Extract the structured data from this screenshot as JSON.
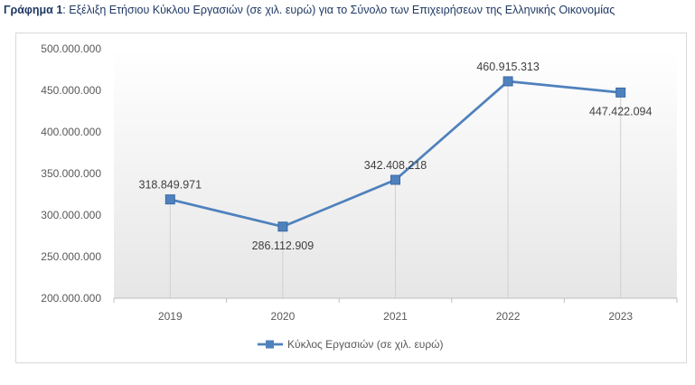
{
  "caption": {
    "prefix": "Γράφημα 1",
    "text": ": Εξέλιξη Ετήσιου Κύκλου Εργασιών (σε χιλ. ευρώ) για το Σύνολο των Επιχειρήσεων της Ελληνικής Οικονομίας"
  },
  "chart_data": {
    "type": "line",
    "categories": [
      "2019",
      "2020",
      "2021",
      "2022",
      "2023"
    ],
    "series": [
      {
        "name": "Κύκλος Εργασιών (σε χιλ. ευρώ)",
        "values": [
          318849971,
          286112909,
          342408218,
          460915313,
          447422094
        ],
        "labels": [
          "318.849.971",
          "286.112.909",
          "342.408.218",
          "460.915.313",
          "447.422.094"
        ],
        "color": "#4f81bd",
        "marker": "square"
      }
    ],
    "ylim": [
      200000000,
      500000000
    ],
    "yticks": [
      200000000,
      250000000,
      300000000,
      350000000,
      400000000,
      450000000,
      500000000
    ],
    "ytick_labels": [
      "200.000.000",
      "250.000.000",
      "300.000.000",
      "350.000.000",
      "400.000.000",
      "450.000.000",
      "500.000.000"
    ],
    "legend_position": "bottom",
    "grid": "vertical drop lines at categories",
    "plot_background": "gradient white to light gray"
  }
}
